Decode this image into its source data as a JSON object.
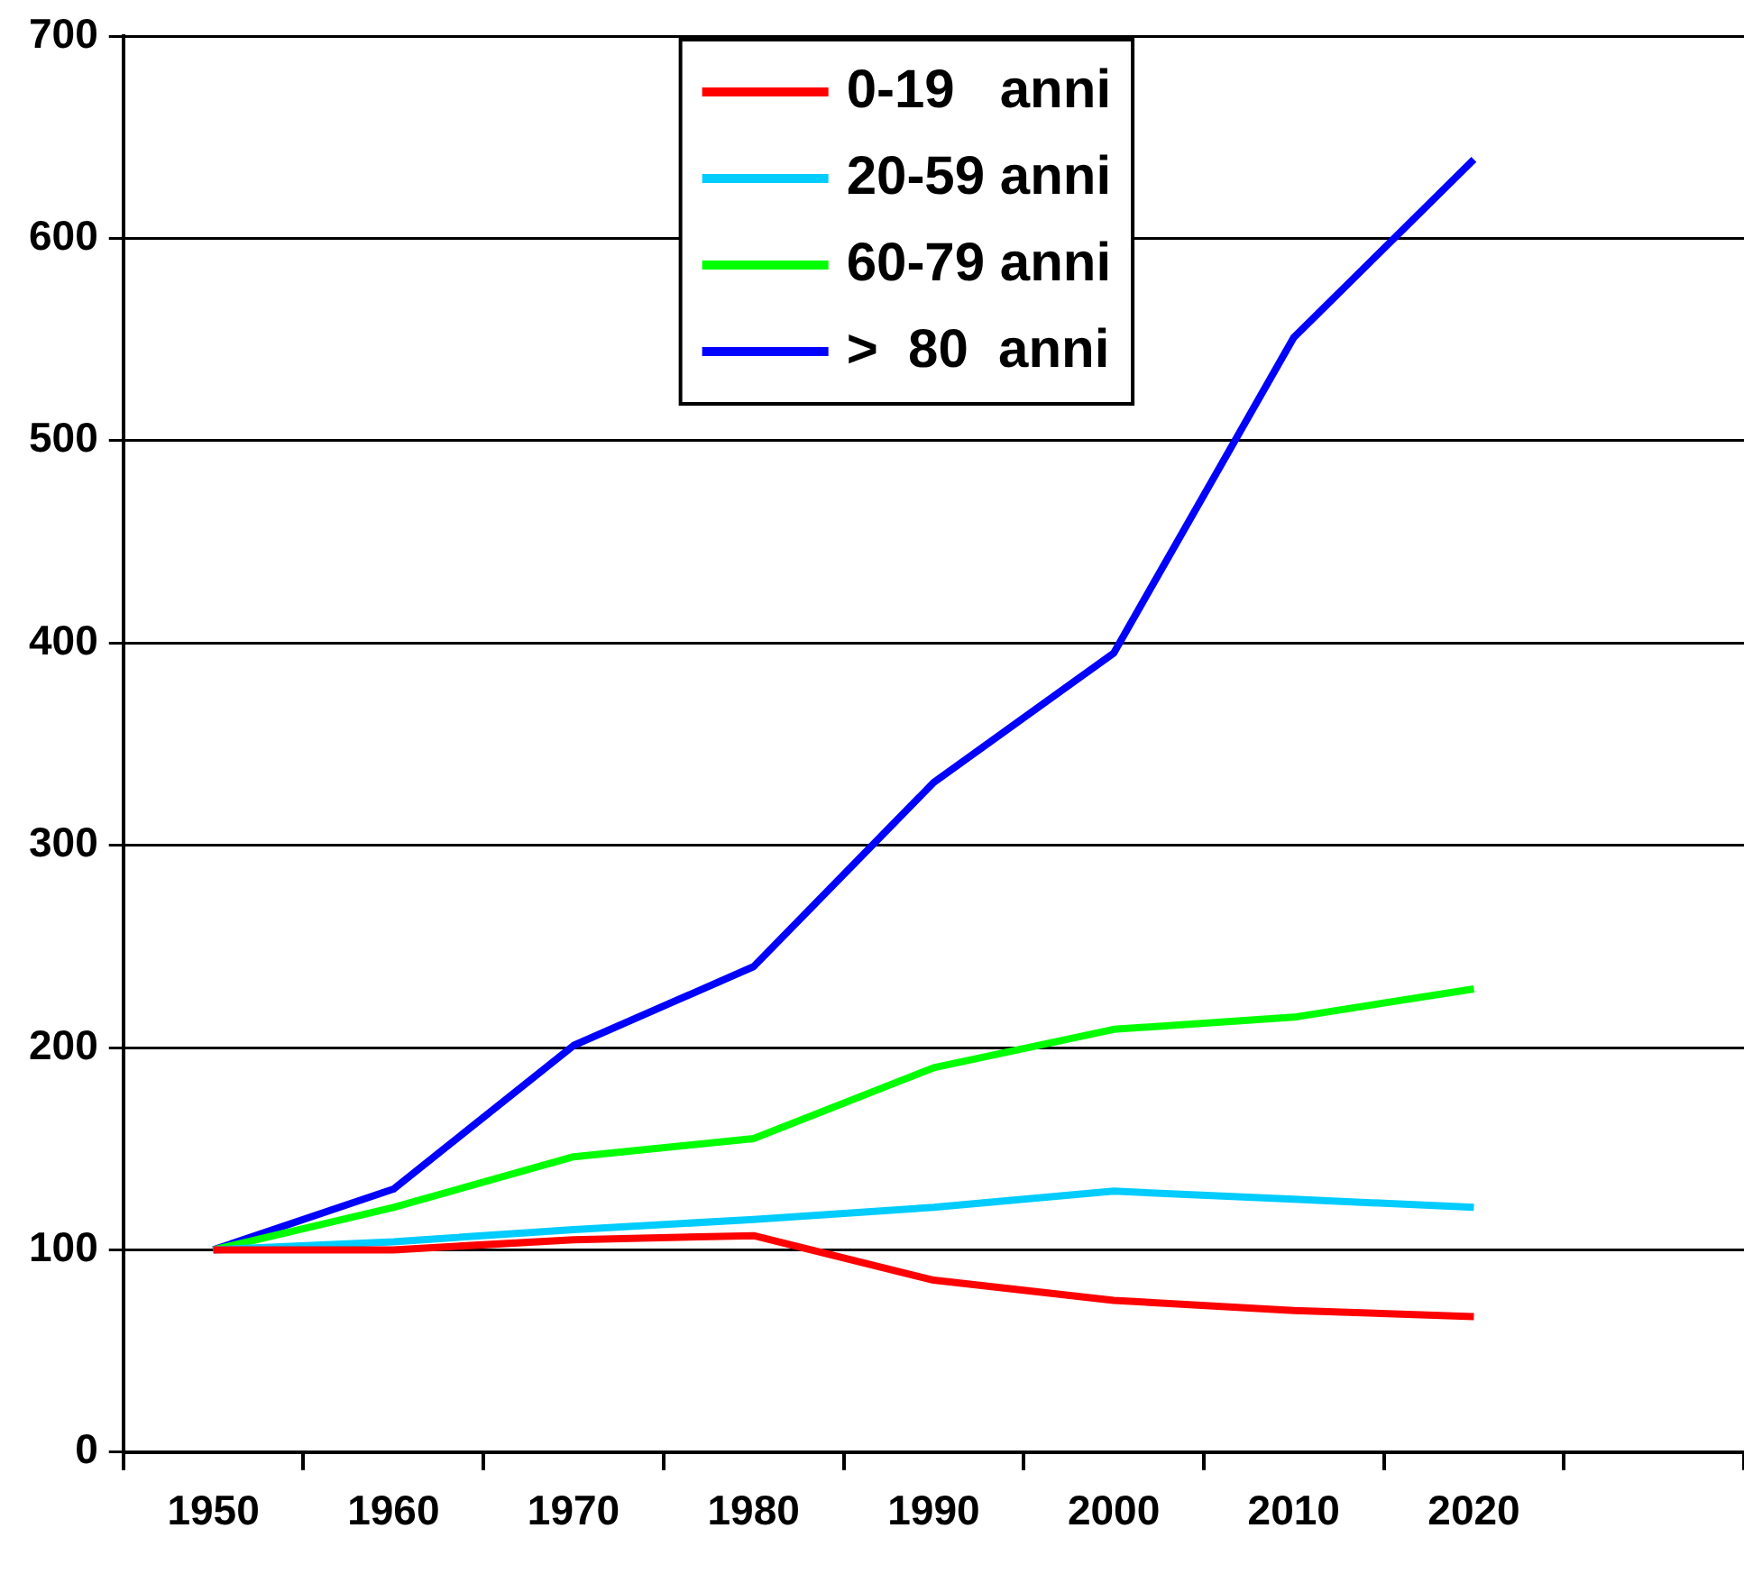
{
  "chart_data": {
    "type": "line",
    "categories": [
      "1950",
      "1960",
      "1970",
      "1980",
      "1990",
      "2000",
      "2010",
      "2020",
      null
    ],
    "series": [
      {
        "name": "0-19   anni",
        "color": "#ff0000",
        "values": [
          100,
          100,
          105,
          107,
          85,
          75,
          70,
          67,
          null
        ]
      },
      {
        "name": "20-59 anni",
        "color": "#00ccff",
        "values": [
          100,
          104,
          110,
          115,
          121,
          129,
          125,
          121,
          null
        ]
      },
      {
        "name": "60-79 anni",
        "color": "#00ff00",
        "values": [
          100,
          121,
          146,
          155,
          190,
          209,
          215,
          229,
          null
        ]
      },
      {
        "name": ">  80  anni",
        "color": "#0000ff",
        "values": [
          100,
          130,
          201,
          240,
          331,
          395,
          551,
          639,
          null
        ]
      }
    ],
    "ylim": [
      0,
      700
    ],
    "yticks": [
      0,
      100,
      200,
      300,
      400,
      500,
      600,
      700
    ],
    "grid": "y",
    "legend": "top",
    "marker": "none",
    "line_style": "solid"
  }
}
